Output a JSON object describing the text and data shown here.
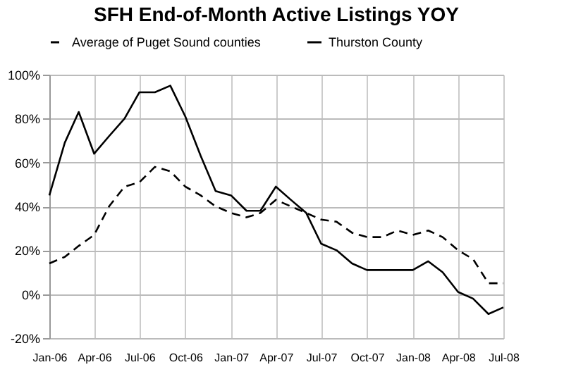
{
  "chart_data": {
    "type": "line",
    "title": "SFH End-of-Month Active Listings YOY",
    "x": [
      "2006-01",
      "2006-02",
      "2006-03",
      "2006-04",
      "2006-05",
      "2006-06",
      "2006-07",
      "2006-08",
      "2006-09",
      "2006-10",
      "2006-11",
      "2006-12",
      "2007-01",
      "2007-02",
      "2007-03",
      "2007-04",
      "2007-05",
      "2007-06",
      "2007-07",
      "2007-08",
      "2007-09",
      "2007-10",
      "2007-11",
      "2007-12",
      "2008-01",
      "2008-02",
      "2008-03",
      "2008-04",
      "2008-05",
      "2008-06",
      "2008-07"
    ],
    "series": [
      {
        "name": "Average of Puget Sound counties",
        "color": "#000000",
        "line_style": "dashed",
        "values": [
          14,
          17,
          22,
          27,
          40,
          49,
          51,
          58,
          56,
          49,
          45,
          40,
          37,
          35,
          37,
          43,
          40,
          37,
          34,
          33,
          28,
          26,
          26,
          29,
          27,
          29,
          26,
          20,
          16,
          5,
          5
        ]
      },
      {
        "name": "Thurston County",
        "color": "#000000",
        "line_style": "solid",
        "values": [
          45,
          69,
          83,
          64,
          72,
          80,
          92,
          92,
          95,
          81,
          63,
          47,
          45,
          38,
          38,
          49,
          43,
          37,
          23,
          20,
          14,
          11,
          11,
          11,
          11,
          15,
          10,
          1,
          -2,
          -9,
          -6
        ]
      }
    ],
    "xlim": [
      "2006-01",
      "2008-07"
    ],
    "xticks": [
      {
        "value": "2006-01",
        "label": "Jan-06"
      },
      {
        "value": "2006-04",
        "label": "Apr-06"
      },
      {
        "value": "2006-07",
        "label": "Jul-06"
      },
      {
        "value": "2006-10",
        "label": "Oct-06"
      },
      {
        "value": "2007-01",
        "label": "Jan-07"
      },
      {
        "value": "2007-04",
        "label": "Apr-07"
      },
      {
        "value": "2007-07",
        "label": "Jul-07"
      },
      {
        "value": "2007-10",
        "label": "Oct-07"
      },
      {
        "value": "2008-01",
        "label": "Jan-08"
      },
      {
        "value": "2008-04",
        "label": "Apr-08"
      },
      {
        "value": "2008-07",
        "label": "Jul-08"
      }
    ],
    "ylim": [
      -20,
      100
    ],
    "yticks": [
      {
        "value": -20,
        "label": "-20%"
      },
      {
        "value": 0,
        "label": "0%"
      },
      {
        "value": 20,
        "label": "20%"
      },
      {
        "value": 40,
        "label": "40%"
      },
      {
        "value": 60,
        "label": "60%"
      },
      {
        "value": 80,
        "label": "80%"
      },
      {
        "value": 100,
        "label": "100%"
      }
    ],
    "grid": true,
    "legend": "top",
    "marker": "none"
  }
}
